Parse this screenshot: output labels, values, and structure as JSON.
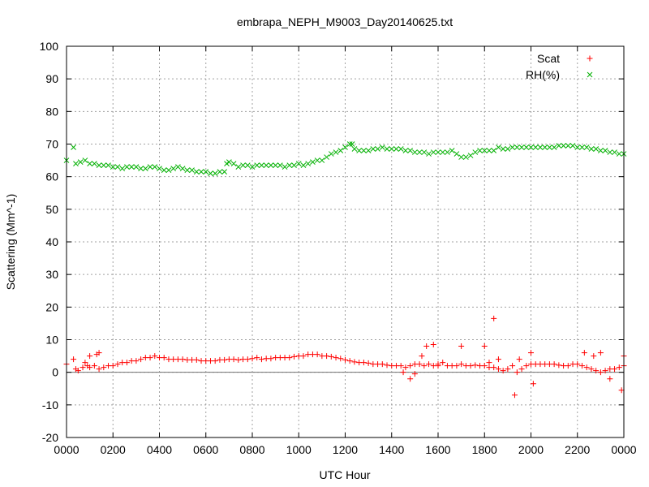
{
  "chart_data": {
    "type": "scatter",
    "title": "embrapa_NEPH_M9003_Day20140625.txt",
    "xlabel": "UTC Hour",
    "ylabel": "Scattering (Mm^-1)",
    "xlim": [
      0,
      24
    ],
    "ylim": [
      -20,
      100
    ],
    "grid": true,
    "legend_position": "top-right",
    "x_tick_labels": [
      "0000",
      "0200",
      "0400",
      "0600",
      "0800",
      "1000",
      "1200",
      "1400",
      "1600",
      "1800",
      "2000",
      "2200",
      "0000"
    ],
    "y_tick_labels": [
      "-20",
      "-10",
      "0",
      "10",
      "20",
      "30",
      "40",
      "50",
      "60",
      "70",
      "80",
      "90",
      "100"
    ],
    "series": [
      {
        "name": "Scat",
        "marker": "+",
        "color": "#ff0000",
        "x": [
          0.0,
          0.4,
          0.5,
          0.7,
          0.8,
          0.9,
          1.0,
          1.2,
          1.4,
          1.6,
          1.8,
          2.0,
          2.2,
          2.4,
          2.6,
          2.8,
          3.0,
          3.2,
          3.4,
          3.6,
          3.8,
          4.0,
          4.2,
          4.4,
          4.6,
          4.8,
          5.0,
          5.2,
          5.4,
          5.6,
          5.8,
          6.0,
          6.2,
          6.4,
          6.6,
          6.8,
          7.0,
          7.2,
          7.4,
          7.6,
          7.8,
          8.0,
          8.2,
          8.4,
          8.6,
          8.8,
          9.0,
          9.2,
          9.4,
          9.6,
          9.8,
          10.0,
          10.2,
          10.4,
          10.6,
          10.8,
          11.0,
          11.2,
          11.4,
          11.6,
          11.8,
          12.0,
          12.2,
          12.4,
          12.6,
          12.8,
          13.0,
          13.2,
          13.4,
          13.6,
          13.8,
          14.0,
          14.2,
          14.4,
          14.6,
          14.8,
          15.0,
          15.2,
          15.4,
          15.6,
          15.8,
          16.0,
          16.2,
          16.4,
          16.6,
          16.8,
          17.0,
          17.2,
          17.4,
          17.6,
          17.8,
          18.0,
          18.2,
          18.4,
          18.6,
          18.8,
          19.0,
          19.2,
          19.4,
          19.6,
          19.8,
          20.0,
          20.2,
          20.4,
          20.6,
          20.8,
          21.0,
          21.2,
          21.4,
          21.6,
          21.8,
          22.0,
          22.2,
          22.4,
          22.6,
          22.8,
          23.0,
          23.2,
          23.4,
          23.6,
          23.8,
          24.0,
          0.3,
          1.0,
          1.3,
          1.4,
          14.5,
          14.8,
          15.0,
          15.3,
          15.5,
          15.8,
          16.0,
          17.0,
          18.0,
          18.2,
          18.4,
          18.6,
          19.3,
          19.5,
          20.0,
          20.1,
          22.3,
          22.7,
          23.0,
          23.4,
          23.9,
          24.0
        ],
        "y": [
          2.5,
          1.0,
          0.5,
          1.5,
          3.0,
          2.0,
          1.5,
          2.0,
          1.0,
          1.5,
          2.0,
          2.0,
          2.5,
          3.0,
          3.0,
          3.5,
          3.5,
          4.0,
          4.5,
          4.5,
          5.0,
          4.5,
          4.5,
          4.0,
          4.0,
          4.0,
          4.0,
          3.8,
          3.8,
          3.8,
          3.5,
          3.5,
          3.5,
          3.5,
          3.8,
          3.8,
          4.0,
          4.0,
          3.8,
          4.0,
          4.0,
          4.2,
          4.5,
          4.0,
          4.2,
          4.2,
          4.5,
          4.5,
          4.5,
          4.5,
          4.8,
          5.0,
          5.0,
          5.5,
          5.5,
          5.5,
          5.0,
          5.0,
          4.8,
          4.5,
          4.2,
          3.8,
          3.5,
          3.2,
          3.0,
          3.0,
          2.8,
          2.5,
          2.5,
          2.5,
          2.2,
          2.0,
          2.0,
          2.0,
          1.5,
          2.0,
          2.5,
          2.5,
          2.0,
          2.5,
          2.0,
          2.5,
          3.0,
          2.0,
          2.0,
          2.0,
          2.5,
          2.0,
          2.0,
          2.2,
          2.0,
          2.0,
          1.5,
          1.5,
          1.0,
          0.5,
          1.0,
          2.0,
          0.0,
          1.0,
          2.0,
          2.5,
          2.5,
          2.5,
          2.5,
          2.5,
          2.5,
          2.2,
          2.0,
          2.0,
          2.5,
          2.5,
          2.0,
          1.5,
          1.0,
          0.5,
          0.0,
          0.5,
          1.0,
          1.0,
          1.5,
          2.0,
          4.0,
          5.0,
          5.5,
          6.0,
          0.0,
          -2.0,
          -0.5,
          5.0,
          8.0,
          8.5,
          2.0,
          8.0,
          8.0,
          3.0,
          16.5,
          4.0,
          -7.0,
          4.0,
          6.0,
          -3.5,
          6.0,
          5.0,
          6.0,
          -2.0,
          -5.5,
          5.0
        ]
      },
      {
        "name": "RH(%)",
        "marker": "x",
        "color": "#00b000",
        "x": [
          0.0,
          0.3,
          0.4,
          0.6,
          0.8,
          1.0,
          1.2,
          1.4,
          1.6,
          1.8,
          2.0,
          2.2,
          2.4,
          2.6,
          2.8,
          3.0,
          3.2,
          3.4,
          3.6,
          3.8,
          4.0,
          4.2,
          4.4,
          4.6,
          4.8,
          5.0,
          5.2,
          5.4,
          5.6,
          5.8,
          6.0,
          6.2,
          6.4,
          6.6,
          6.8,
          6.9,
          7.0,
          7.2,
          7.4,
          7.6,
          7.8,
          8.0,
          8.2,
          8.4,
          8.6,
          8.8,
          9.0,
          9.2,
          9.4,
          9.6,
          9.8,
          10.0,
          10.2,
          10.4,
          10.6,
          10.8,
          11.0,
          11.2,
          11.4,
          11.6,
          11.8,
          12.0,
          12.2,
          12.3,
          12.4,
          12.6,
          12.8,
          13.0,
          13.2,
          13.4,
          13.6,
          13.8,
          14.0,
          14.2,
          14.4,
          14.6,
          14.8,
          15.0,
          15.2,
          15.4,
          15.6,
          15.8,
          16.0,
          16.2,
          16.4,
          16.6,
          16.8,
          17.0,
          17.2,
          17.4,
          17.6,
          17.8,
          18.0,
          18.2,
          18.4,
          18.6,
          18.8,
          19.0,
          19.2,
          19.4,
          19.6,
          19.8,
          20.0,
          20.2,
          20.4,
          20.6,
          20.8,
          21.0,
          21.2,
          21.4,
          21.6,
          21.8,
          22.0,
          22.2,
          22.4,
          22.6,
          22.8,
          23.0,
          23.2,
          23.4,
          23.6,
          23.8,
          24.0
        ],
        "y": [
          65.0,
          69.0,
          64.0,
          64.5,
          65.0,
          64.0,
          64.0,
          63.5,
          63.5,
          63.5,
          63.0,
          63.0,
          62.5,
          63.0,
          63.0,
          63.0,
          62.5,
          62.5,
          63.0,
          63.0,
          62.5,
          62.0,
          62.0,
          62.5,
          63.0,
          62.5,
          62.0,
          62.0,
          61.5,
          61.5,
          61.5,
          61.0,
          61.0,
          61.5,
          61.5,
          64.0,
          64.5,
          64.0,
          63.0,
          63.5,
          63.5,
          63.0,
          63.5,
          63.5,
          63.5,
          63.5,
          63.5,
          63.5,
          63.0,
          63.5,
          63.5,
          64.0,
          63.5,
          64.0,
          64.5,
          65.0,
          65.0,
          66.0,
          67.0,
          67.5,
          68.0,
          69.0,
          70.0,
          70.0,
          68.5,
          68.0,
          68.0,
          68.0,
          68.5,
          68.5,
          69.0,
          68.5,
          68.5,
          68.5,
          68.5,
          68.0,
          68.0,
          67.5,
          67.5,
          67.5,
          67.0,
          67.5,
          67.5,
          67.5,
          67.5,
          68.0,
          67.0,
          66.0,
          66.0,
          66.5,
          67.5,
          68.0,
          68.0,
          68.0,
          68.0,
          69.0,
          68.5,
          68.5,
          69.0,
          69.0,
          69.0,
          69.0,
          69.0,
          69.0,
          69.0,
          69.0,
          69.0,
          69.0,
          69.5,
          69.5,
          69.5,
          69.5,
          69.0,
          69.0,
          69.0,
          68.5,
          68.5,
          68.0,
          68.0,
          67.5,
          67.5,
          67.0,
          67.0
        ]
      }
    ]
  }
}
